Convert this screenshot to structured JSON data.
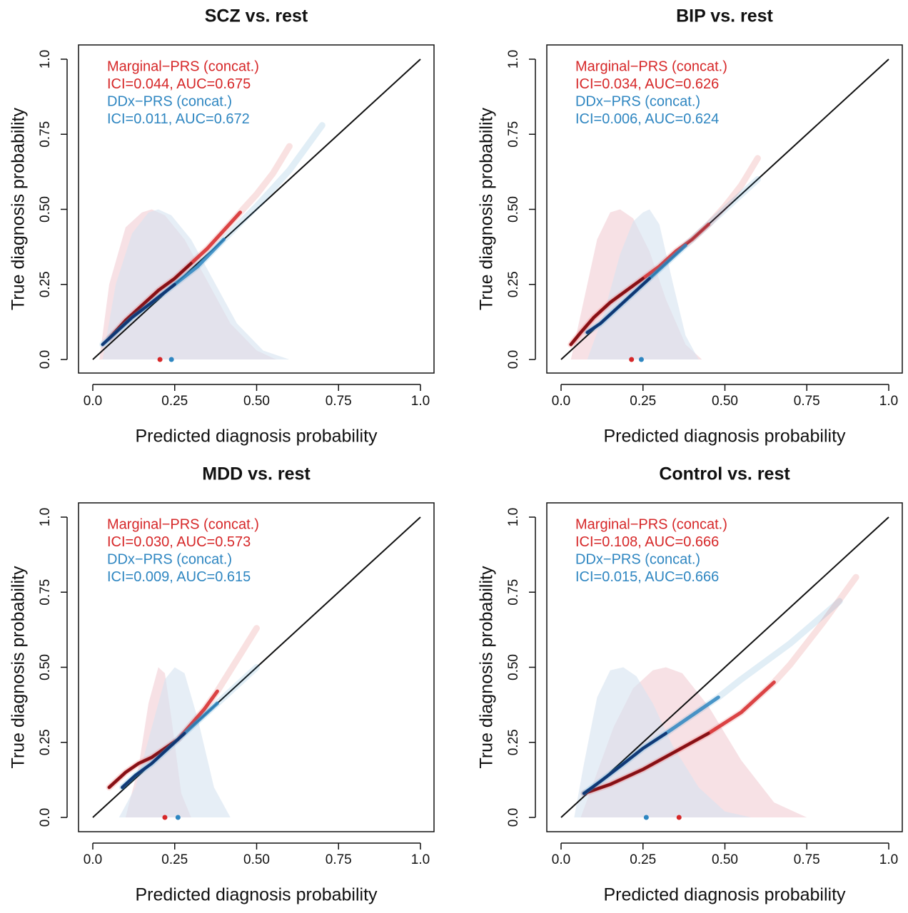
{
  "figure": {
    "xlabel": "Predicted diagnosis probability",
    "ylabel": "True diagnosis probability",
    "colors": {
      "marginal": "#d62728",
      "ddx": "#2e86c1",
      "marginal_dark": "#7a0c12",
      "ddx_dark": "#0c2f6b",
      "density_marginal": "#f4d7dc",
      "density_ddx": "#d6e3f0",
      "identity": "#111111"
    }
  },
  "chart_data": [
    {
      "type": "line",
      "title": "SCZ vs. rest",
      "xlim": [
        0,
        1
      ],
      "ylim": [
        0,
        1
      ],
      "xticks": [
        "0.0",
        "0.25",
        "0.50",
        "0.75",
        "1.0"
      ],
      "yticks": [
        "0.0",
        "0.25",
        "0.50",
        "0.75",
        "1.0"
      ],
      "legend": [
        "Marginal−PRS (concat.)",
        "ICI=0.044, AUC=0.675",
        "DDx−PRS (concat.)",
        "ICI=0.011, AUC=0.672"
      ],
      "series": [
        {
          "name": "Marginal−PRS (concat.)",
          "x": [
            0.05,
            0.1,
            0.15,
            0.2,
            0.25,
            0.3,
            0.35,
            0.4,
            0.45,
            0.5,
            0.55,
            0.6
          ],
          "y": [
            0.07,
            0.13,
            0.18,
            0.23,
            0.27,
            0.32,
            0.37,
            0.43,
            0.49,
            0.55,
            0.62,
            0.71
          ]
        },
        {
          "name": "DDx−PRS (concat.)",
          "x": [
            0.03,
            0.08,
            0.12,
            0.18,
            0.25,
            0.32,
            0.4,
            0.5,
            0.6,
            0.7
          ],
          "y": [
            0.05,
            0.1,
            0.14,
            0.19,
            0.25,
            0.31,
            0.4,
            0.51,
            0.63,
            0.78
          ]
        }
      ],
      "density": [
        {
          "name": "Marginal−PRS (concat.)",
          "x": [
            0.02,
            0.05,
            0.1,
            0.15,
            0.18,
            0.22,
            0.28,
            0.35,
            0.42,
            0.5,
            0.56
          ],
          "y": [
            0.0,
            0.25,
            0.44,
            0.49,
            0.5,
            0.48,
            0.4,
            0.26,
            0.12,
            0.03,
            0.0
          ]
        },
        {
          "name": "DDx−PRS (concat.)",
          "x": [
            0.03,
            0.07,
            0.12,
            0.17,
            0.2,
            0.24,
            0.3,
            0.37,
            0.44,
            0.52,
            0.6
          ],
          "y": [
            0.0,
            0.25,
            0.42,
            0.49,
            0.5,
            0.48,
            0.4,
            0.26,
            0.12,
            0.03,
            0.0
          ]
        }
      ],
      "mean_points": [
        {
          "name": "Marginal−PRS (concat.)",
          "x": 0.205
        },
        {
          "name": "DDx−PRS (concat.)",
          "x": 0.24
        }
      ]
    },
    {
      "type": "line",
      "title": "BIP vs. rest",
      "xlim": [
        0,
        1
      ],
      "ylim": [
        0,
        1
      ],
      "xticks": [
        "0.0",
        "0.25",
        "0.50",
        "0.75",
        "1.0"
      ],
      "yticks": [
        "0.0",
        "0.25",
        "0.50",
        "0.75",
        "1.0"
      ],
      "legend": [
        "Marginal−PRS (concat.)",
        "ICI=0.034, AUC=0.626",
        "DDx−PRS (concat.)",
        "ICI=0.006, AUC=0.624"
      ],
      "series": [
        {
          "name": "Marginal−PRS (concat.)",
          "x": [
            0.03,
            0.06,
            0.1,
            0.15,
            0.2,
            0.25,
            0.3,
            0.35,
            0.4,
            0.45,
            0.5,
            0.55,
            0.6
          ],
          "y": [
            0.05,
            0.09,
            0.14,
            0.19,
            0.23,
            0.27,
            0.31,
            0.36,
            0.4,
            0.45,
            0.51,
            0.58,
            0.67
          ]
        },
        {
          "name": "DDx−PRS (concat.)",
          "x": [
            0.08,
            0.12,
            0.17,
            0.22,
            0.27,
            0.32,
            0.38,
            0.45,
            0.55,
            0.6
          ],
          "y": [
            0.09,
            0.12,
            0.17,
            0.22,
            0.27,
            0.32,
            0.38,
            0.45,
            0.55,
            0.6
          ]
        }
      ],
      "density": [
        {
          "name": "Marginal−PRS (concat.)",
          "x": [
            0.03,
            0.07,
            0.11,
            0.15,
            0.18,
            0.22,
            0.27,
            0.32,
            0.38,
            0.43
          ],
          "y": [
            0.0,
            0.2,
            0.4,
            0.49,
            0.5,
            0.47,
            0.36,
            0.2,
            0.05,
            0.0
          ]
        },
        {
          "name": "DDx−PRS (concat.)",
          "x": [
            0.08,
            0.13,
            0.18,
            0.22,
            0.25,
            0.27,
            0.3,
            0.34,
            0.38,
            0.42
          ],
          "y": [
            0.0,
            0.15,
            0.35,
            0.46,
            0.49,
            0.5,
            0.45,
            0.26,
            0.08,
            0.0
          ]
        }
      ],
      "mean_points": [
        {
          "name": "Marginal−PRS (concat.)",
          "x": 0.215
        },
        {
          "name": "DDx−PRS (concat.)",
          "x": 0.245
        }
      ]
    },
    {
      "type": "line",
      "title": "MDD vs. rest",
      "xlim": [
        0,
        1
      ],
      "ylim": [
        0,
        1
      ],
      "xticks": [
        "0.0",
        "0.25",
        "0.50",
        "0.75",
        "1.0"
      ],
      "yticks": [
        "0.0",
        "0.25",
        "0.50",
        "0.75",
        "1.0"
      ],
      "legend": [
        "Marginal−PRS (concat.)",
        "ICI=0.030, AUC=0.573",
        "DDx−PRS (concat.)",
        "ICI=0.009, AUC=0.615"
      ],
      "series": [
        {
          "name": "Marginal−PRS (concat.)",
          "x": [
            0.05,
            0.1,
            0.14,
            0.18,
            0.22,
            0.26,
            0.3,
            0.34,
            0.38,
            0.42,
            0.46,
            0.5
          ],
          "y": [
            0.1,
            0.15,
            0.18,
            0.2,
            0.23,
            0.26,
            0.31,
            0.36,
            0.42,
            0.49,
            0.56,
            0.63
          ]
        },
        {
          "name": "DDx−PRS (concat.)",
          "x": [
            0.09,
            0.13,
            0.18,
            0.23,
            0.28,
            0.33,
            0.38,
            0.42,
            0.5
          ],
          "y": [
            0.1,
            0.14,
            0.18,
            0.23,
            0.28,
            0.33,
            0.38,
            0.42,
            0.5
          ]
        }
      ],
      "density": [
        {
          "name": "Marginal−PRS (concat.)",
          "x": [
            0.1,
            0.14,
            0.17,
            0.2,
            0.22,
            0.24,
            0.27,
            0.3
          ],
          "y": [
            0.0,
            0.17,
            0.38,
            0.5,
            0.48,
            0.33,
            0.08,
            0.0
          ]
        },
        {
          "name": "DDx−PRS (concat.)",
          "x": [
            0.08,
            0.13,
            0.18,
            0.22,
            0.25,
            0.28,
            0.32,
            0.37,
            0.42
          ],
          "y": [
            0.0,
            0.1,
            0.3,
            0.46,
            0.5,
            0.48,
            0.33,
            0.1,
            0.0
          ]
        }
      ],
      "mean_points": [
        {
          "name": "Marginal−PRS (concat.)",
          "x": 0.22
        },
        {
          "name": "DDx−PRS (concat.)",
          "x": 0.26
        }
      ]
    },
    {
      "type": "line",
      "title": "Control vs. rest",
      "xlim": [
        0,
        1
      ],
      "ylim": [
        0,
        1
      ],
      "xticks": [
        "0.0",
        "0.25",
        "0.50",
        "0.75",
        "1.0"
      ],
      "yticks": [
        "0.0",
        "0.25",
        "0.50",
        "0.75",
        "1.0"
      ],
      "legend": [
        "Marginal−PRS (concat.)",
        "ICI=0.108, AUC=0.666",
        "DDx−PRS (concat.)",
        "ICI=0.015, AUC=0.666"
      ],
      "series": [
        {
          "name": "Marginal−PRS (concat.)",
          "x": [
            0.07,
            0.15,
            0.25,
            0.35,
            0.45,
            0.55,
            0.65,
            0.7,
            0.8,
            0.9
          ],
          "y": [
            0.08,
            0.11,
            0.16,
            0.22,
            0.28,
            0.35,
            0.45,
            0.51,
            0.65,
            0.8
          ]
        },
        {
          "name": "DDx−PRS (concat.)",
          "x": [
            0.07,
            0.12,
            0.18,
            0.25,
            0.32,
            0.4,
            0.48,
            0.55,
            0.7,
            0.85
          ],
          "y": [
            0.08,
            0.12,
            0.17,
            0.23,
            0.28,
            0.34,
            0.4,
            0.46,
            0.58,
            0.72
          ]
        }
      ],
      "density": [
        {
          "name": "Marginal−PRS (concat.)",
          "x": [
            0.06,
            0.1,
            0.16,
            0.22,
            0.28,
            0.32,
            0.37,
            0.45,
            0.55,
            0.65,
            0.75
          ],
          "y": [
            0.0,
            0.12,
            0.3,
            0.43,
            0.49,
            0.5,
            0.48,
            0.37,
            0.19,
            0.05,
            0.0
          ]
        },
        {
          "name": "DDx−PRS (concat.)",
          "x": [
            0.04,
            0.07,
            0.11,
            0.15,
            0.19,
            0.23,
            0.28,
            0.34,
            0.42,
            0.5,
            0.58
          ],
          "y": [
            0.0,
            0.18,
            0.4,
            0.49,
            0.5,
            0.47,
            0.38,
            0.24,
            0.1,
            0.02,
            0.0
          ]
        }
      ],
      "mean_points": [
        {
          "name": "Marginal−PRS (concat.)",
          "x": 0.36
        },
        {
          "name": "DDx−PRS (concat.)",
          "x": 0.26
        }
      ]
    }
  ]
}
